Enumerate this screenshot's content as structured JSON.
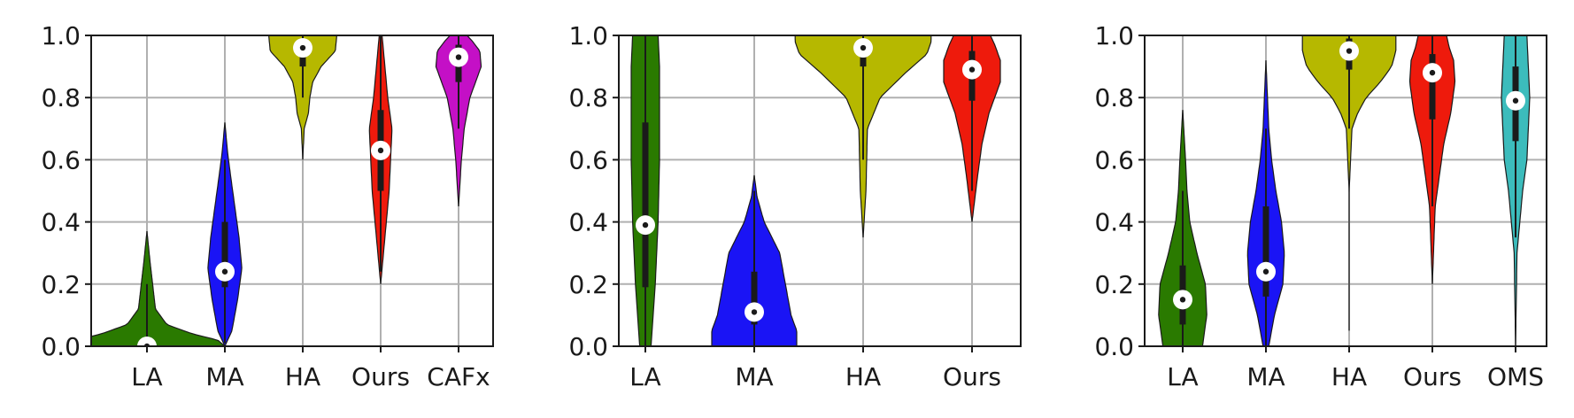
{
  "chart_data": [
    {
      "type": "violin",
      "title": "",
      "xlabel": "",
      "ylabel": "",
      "ylim": [
        0,
        1
      ],
      "yticks": [
        "0.0",
        "0.2",
        "0.4",
        "0.6",
        "0.8",
        "1.0"
      ],
      "grid": true,
      "categories": [
        "LA",
        "MA",
        "HA",
        "Ours",
        "CAFx"
      ],
      "colors": [
        "#2a7a00",
        "#1a14f5",
        "#b6b800",
        "#ee1a0c",
        "#c410c6"
      ],
      "series": [
        {
          "label": "LA",
          "range": [
            0.0,
            0.37
          ],
          "q1": 0.0,
          "median": 0.0,
          "q3": 0.03,
          "whisker": [
            0.0,
            0.2
          ],
          "density": [
            [
              0.0,
              0.55
            ],
            [
              0.02,
              0.5
            ],
            [
              0.04,
              0.32
            ],
            [
              0.07,
              0.14
            ],
            [
              0.12,
              0.06
            ],
            [
              0.2,
              0.04
            ],
            [
              0.28,
              0.02
            ],
            [
              0.37,
              0.0
            ]
          ]
        },
        {
          "label": "MA",
          "range": [
            0.0,
            0.72
          ],
          "q1": 0.19,
          "median": 0.24,
          "q3": 0.4,
          "whisker": [
            0.01,
            0.6
          ],
          "density": [
            [
              0.0,
              0.0
            ],
            [
              0.05,
              0.05
            ],
            [
              0.15,
              0.09
            ],
            [
              0.25,
              0.12
            ],
            [
              0.35,
              0.1
            ],
            [
              0.45,
              0.07
            ],
            [
              0.55,
              0.04
            ],
            [
              0.62,
              0.02
            ],
            [
              0.72,
              0.0
            ]
          ]
        },
        {
          "label": "HA",
          "range": [
            0.6,
            1.0
          ],
          "q1": 0.9,
          "median": 0.96,
          "q3": 0.99,
          "whisker": [
            0.8,
            1.0
          ],
          "density": [
            [
              0.6,
              0.0
            ],
            [
              0.7,
              0.01
            ],
            [
              0.75,
              0.04
            ],
            [
              0.8,
              0.05
            ],
            [
              0.85,
              0.07
            ],
            [
              0.9,
              0.13
            ],
            [
              0.95,
              0.23
            ],
            [
              1.0,
              0.24
            ]
          ]
        },
        {
          "label": "Ours",
          "range": [
            0.2,
            1.0
          ],
          "q1": 0.5,
          "median": 0.63,
          "q3": 0.76,
          "whisker": [
            0.24,
            1.0
          ],
          "density": [
            [
              0.2,
              0.0
            ],
            [
              0.3,
              0.02
            ],
            [
              0.4,
              0.04
            ],
            [
              0.5,
              0.06
            ],
            [
              0.6,
              0.07
            ],
            [
              0.7,
              0.08
            ],
            [
              0.8,
              0.05
            ],
            [
              0.9,
              0.03
            ],
            [
              1.0,
              0.01
            ]
          ]
        },
        {
          "label": "CAFx",
          "range": [
            0.45,
            1.0
          ],
          "q1": 0.85,
          "median": 0.93,
          "q3": 0.97,
          "whisker": [
            0.7,
            1.0
          ],
          "density": [
            [
              0.45,
              0.0
            ],
            [
              0.6,
              0.02
            ],
            [
              0.7,
              0.04
            ],
            [
              0.8,
              0.08
            ],
            [
              0.85,
              0.12
            ],
            [
              0.9,
              0.16
            ],
            [
              0.95,
              0.15
            ],
            [
              0.98,
              0.1
            ],
            [
              1.0,
              0.06
            ]
          ]
        }
      ]
    },
    {
      "type": "violin",
      "title": "",
      "xlabel": "",
      "ylabel": "",
      "ylim": [
        0,
        1
      ],
      "yticks": [
        "0.0",
        "0.2",
        "0.4",
        "0.6",
        "0.8",
        "1.0"
      ],
      "grid": true,
      "categories": [
        "LA",
        "MA",
        "HA",
        "Ours"
      ],
      "colors": [
        "#2a7a00",
        "#1a14f5",
        "#b6b800",
        "#ee1a0c"
      ],
      "series": [
        {
          "label": "LA",
          "range": [
            0.0,
            1.0
          ],
          "q1": 0.19,
          "median": 0.39,
          "q3": 0.72,
          "whisker": [
            0.0,
            1.0
          ],
          "density": [
            [
              0.0,
              0.04
            ],
            [
              0.2,
              0.07
            ],
            [
              0.4,
              0.09
            ],
            [
              0.6,
              0.1
            ],
            [
              0.8,
              0.1
            ],
            [
              0.9,
              0.1
            ],
            [
              1.0,
              0.09
            ]
          ]
        },
        {
          "label": "MA",
          "range": [
            0.0,
            0.55
          ],
          "q1": 0.07,
          "median": 0.11,
          "q3": 0.24,
          "whisker": [
            0.0,
            0.5
          ],
          "density": [
            [
              0.0,
              0.3
            ],
            [
              0.05,
              0.3
            ],
            [
              0.1,
              0.26
            ],
            [
              0.2,
              0.22
            ],
            [
              0.3,
              0.18
            ],
            [
              0.4,
              0.07
            ],
            [
              0.48,
              0.02
            ],
            [
              0.55,
              0.0
            ]
          ]
        },
        {
          "label": "HA",
          "range": [
            0.35,
            1.0
          ],
          "q1": 0.9,
          "median": 0.96,
          "q3": 0.98,
          "whisker": [
            0.6,
            1.0
          ],
          "density": [
            [
              0.35,
              0.0
            ],
            [
              0.5,
              0.02
            ],
            [
              0.7,
              0.03
            ],
            [
              0.8,
              0.12
            ],
            [
              0.88,
              0.3
            ],
            [
              0.94,
              0.45
            ],
            [
              0.98,
              0.48
            ],
            [
              1.0,
              0.48
            ]
          ]
        },
        {
          "label": "Ours",
          "range": [
            0.4,
            1.0
          ],
          "q1": 0.79,
          "median": 0.89,
          "q3": 0.95,
          "whisker": [
            0.5,
            1.0
          ],
          "density": [
            [
              0.4,
              0.0
            ],
            [
              0.55,
              0.04
            ],
            [
              0.65,
              0.07
            ],
            [
              0.75,
              0.12
            ],
            [
              0.85,
              0.2
            ],
            [
              0.92,
              0.2
            ],
            [
              0.97,
              0.16
            ],
            [
              1.0,
              0.13
            ]
          ]
        }
      ]
    },
    {
      "type": "violin",
      "title": "",
      "xlabel": "",
      "ylabel": "",
      "ylim": [
        0,
        1
      ],
      "yticks": [
        "0.0",
        "0.2",
        "0.4",
        "0.6",
        "0.8",
        "1.0"
      ],
      "grid": true,
      "categories": [
        "LA",
        "MA",
        "HA",
        "Ours",
        "OMS"
      ],
      "colors": [
        "#2a7a00",
        "#1a14f5",
        "#b6b800",
        "#ee1a0c",
        "#3cbcbc"
      ],
      "series": [
        {
          "label": "LA",
          "range": [
            0.0,
            0.76
          ],
          "q1": 0.07,
          "median": 0.15,
          "q3": 0.26,
          "whisker": [
            0.0,
            0.5
          ],
          "density": [
            [
              0.0,
              0.14
            ],
            [
              0.1,
              0.17
            ],
            [
              0.2,
              0.16
            ],
            [
              0.3,
              0.1
            ],
            [
              0.4,
              0.05
            ],
            [
              0.5,
              0.03
            ],
            [
              0.6,
              0.02
            ],
            [
              0.76,
              0.0
            ]
          ]
        },
        {
          "label": "MA",
          "range": [
            0.0,
            0.92
          ],
          "q1": 0.16,
          "median": 0.24,
          "q3": 0.45,
          "whisker": [
            0.0,
            0.7
          ],
          "density": [
            [
              0.0,
              0.02
            ],
            [
              0.1,
              0.06
            ],
            [
              0.2,
              0.12
            ],
            [
              0.3,
              0.13
            ],
            [
              0.4,
              0.11
            ],
            [
              0.5,
              0.07
            ],
            [
              0.6,
              0.04
            ],
            [
              0.7,
              0.02
            ],
            [
              0.92,
              0.0
            ]
          ]
        },
        {
          "label": "HA",
          "range": [
            0.05,
            1.0
          ],
          "q1": 0.89,
          "median": 0.95,
          "q3": 0.99,
          "whisker": [
            0.7,
            1.0
          ],
          "density": [
            [
              0.05,
              0.0
            ],
            [
              0.5,
              0.0
            ],
            [
              0.7,
              0.02
            ],
            [
              0.75,
              0.06
            ],
            [
              0.8,
              0.12
            ],
            [
              0.85,
              0.22
            ],
            [
              0.9,
              0.3
            ],
            [
              0.95,
              0.33
            ],
            [
              1.0,
              0.33
            ]
          ]
        },
        {
          "label": "Ours",
          "range": [
            0.2,
            1.0
          ],
          "q1": 0.73,
          "median": 0.88,
          "q3": 0.94,
          "whisker": [
            0.45,
            1.0
          ],
          "density": [
            [
              0.2,
              0.0
            ],
            [
              0.45,
              0.02
            ],
            [
              0.55,
              0.05
            ],
            [
              0.65,
              0.08
            ],
            [
              0.75,
              0.13
            ],
            [
              0.85,
              0.16
            ],
            [
              0.92,
              0.15
            ],
            [
              0.96,
              0.12
            ],
            [
              1.0,
              0.1
            ]
          ]
        },
        {
          "label": "OMS",
          "range": [
            0.0,
            1.0
          ],
          "q1": 0.66,
          "median": 0.79,
          "q3": 0.9,
          "whisker": [
            0.35,
            1.0
          ],
          "density": [
            [
              0.0,
              0.0
            ],
            [
              0.3,
              0.01
            ],
            [
              0.4,
              0.03
            ],
            [
              0.5,
              0.05
            ],
            [
              0.6,
              0.08
            ],
            [
              0.7,
              0.09
            ],
            [
              0.8,
              0.1
            ],
            [
              0.9,
              0.09
            ],
            [
              1.0,
              0.08
            ]
          ]
        }
      ]
    }
  ]
}
